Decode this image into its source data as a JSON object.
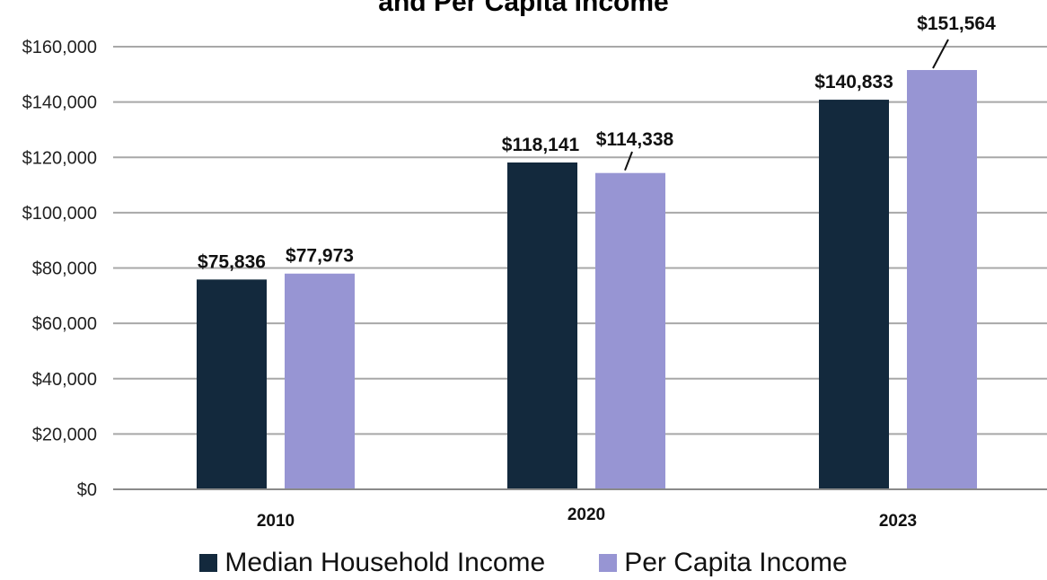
{
  "chart_data": {
    "type": "bar",
    "title": "and Per Capita Income",
    "categories": [
      "2010",
      "2020",
      "2023"
    ],
    "series": [
      {
        "name": "Median Household Income",
        "values": [
          75836,
          118141,
          140833
        ],
        "labels": [
          "$75,836",
          "$118,141",
          "$140,833"
        ],
        "color": "#13293d"
      },
      {
        "name": "Per Capita Income",
        "values": [
          77973,
          114338,
          151564
        ],
        "labels": [
          "$77,973",
          "$114,338",
          "$151,564"
        ],
        "color": "#9795d3"
      }
    ],
    "ylim": [
      0,
      160000
    ],
    "yticks": [
      "$0",
      "$20,000",
      "$40,000",
      "$60,000",
      "$80,000",
      "$100,000",
      "$120,000",
      "$140,000",
      "$160,000"
    ],
    "grid": true,
    "legend_position": "bottom"
  }
}
